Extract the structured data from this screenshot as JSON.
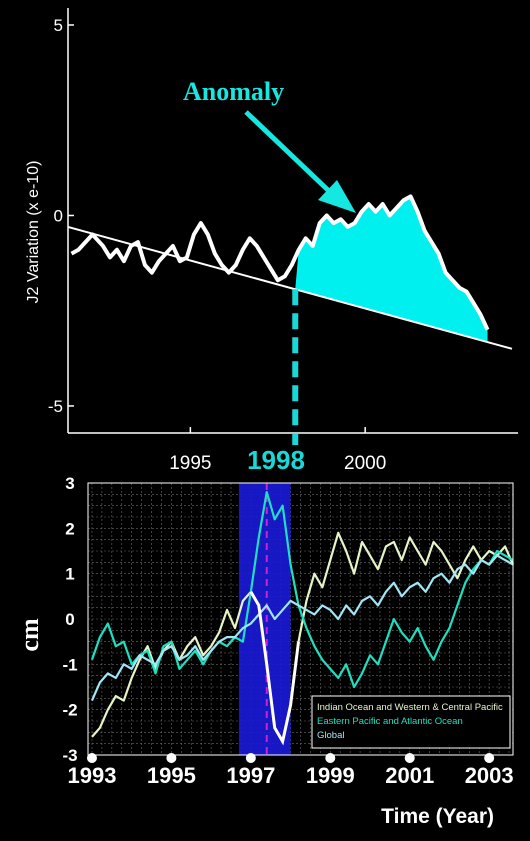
{
  "chart_data": [
    {
      "type": "line",
      "title": "",
      "ylabel": "J2 Variation (x e-10)",
      "xlabel": "",
      "xlim": [
        1991.5,
        2004.2
      ],
      "ylim": [
        -5.5,
        5
      ],
      "yticks": [
        5,
        0,
        -5
      ],
      "xticks": [
        1995,
        2000
      ],
      "highlight_year_label": "1998",
      "annotation": "Anomaly",
      "colors": {
        "series": "#ffffff",
        "anomaly_fill": "#00f0f0",
        "annotation": "#14e8e0",
        "marker": "#18d8d8"
      },
      "trend": {
        "x": [
          1991.5,
          2004.2
        ],
        "y": [
          -0.3,
          -3.5
        ]
      },
      "anomaly_start": 1998,
      "series": [
        {
          "x": [
            1991.6,
            1991.8,
            1992.0,
            1992.2,
            1992.5,
            1992.7,
            1992.9,
            1993.1,
            1993.3,
            1993.5,
            1993.7,
            1993.9,
            1994.1,
            1994.3,
            1994.5,
            1994.7,
            1994.9,
            1995.1,
            1995.3,
            1995.5,
            1995.7,
            1995.9,
            1996.1,
            1996.3,
            1996.5,
            1996.7,
            1996.9,
            1997.1,
            1997.3,
            1997.5,
            1997.7,
            1997.9,
            1998.1,
            1998.3,
            1998.5,
            1998.7,
            1998.9,
            1999.1,
            1999.3,
            1999.5,
            1999.7,
            1999.9,
            2000.1,
            2000.3,
            2000.5,
            2000.7,
            2000.9,
            2001.1,
            2001.3,
            2001.5,
            2001.7,
            2001.9,
            2002.1,
            2002.3,
            2002.5,
            2002.7,
            2002.9,
            2003.1,
            2003.3,
            2003.5
          ],
          "y": [
            -1.0,
            -0.9,
            -0.7,
            -0.5,
            -0.8,
            -1.1,
            -0.9,
            -1.2,
            -0.8,
            -0.7,
            -1.3,
            -1.5,
            -1.2,
            -1.0,
            -0.8,
            -1.2,
            -1.1,
            -0.5,
            -0.2,
            -0.5,
            -1.0,
            -1.3,
            -1.5,
            -1.3,
            -0.9,
            -0.6,
            -0.8,
            -1.1,
            -1.4,
            -1.7,
            -1.6,
            -1.3,
            -0.9,
            -0.6,
            -0.8,
            -0.2,
            0.0,
            -0.2,
            -0.1,
            -0.3,
            -0.2,
            0.1,
            0.3,
            0.1,
            0.3,
            0.0,
            0.2,
            0.4,
            0.5,
            0.1,
            -0.4,
            -0.7,
            -1.0,
            -1.5,
            -1.7,
            -1.9,
            -2.0,
            -2.3,
            -2.6,
            -3.0
          ]
        }
      ]
    },
    {
      "type": "line",
      "title": "",
      "xlabel": "Time (Year)",
      "ylabel": "cm",
      "xlim": [
        1992.9,
        2003.6
      ],
      "ylim": [
        -3,
        3
      ],
      "yticks": [
        3,
        2,
        1,
        0,
        -1,
        -2,
        -3
      ],
      "xticks": [
        1993,
        1995,
        1997,
        1999,
        2001,
        2003
      ],
      "highlight_band": [
        1996.7,
        1998.0
      ],
      "event_line": 1997.4,
      "colors": {
        "band": "#1a1ad8",
        "event": "#d020d0",
        "grid": "#6a6a6a",
        "dot": "#ffffff"
      },
      "legend": {
        "position": "bottom-right"
      },
      "series": [
        {
          "name": "Indian Ocean and Western & Central Pacific",
          "color": "#e6f5c8",
          "x": [
            1993.0,
            1993.2,
            1993.4,
            1993.6,
            1993.8,
            1994.0,
            1994.2,
            1994.4,
            1994.6,
            1994.8,
            1995.0,
            1995.2,
            1995.4,
            1995.6,
            1995.8,
            1996.0,
            1996.2,
            1996.4,
            1996.6,
            1996.8,
            1997.0,
            1997.2,
            1997.4,
            1997.6,
            1997.8,
            1998.0,
            1998.2,
            1998.4,
            1998.6,
            1998.8,
            1999.0,
            1999.2,
            1999.4,
            1999.6,
            1999.8,
            2000.0,
            2000.2,
            2000.4,
            2000.6,
            2000.8,
            2001.0,
            2001.2,
            2001.4,
            2001.6,
            2001.8,
            2002.0,
            2002.2,
            2002.4,
            2002.6,
            2002.8,
            2003.0,
            2003.2,
            2003.4,
            2003.6
          ],
          "y": [
            -2.6,
            -2.4,
            -2.0,
            -1.7,
            -1.8,
            -1.3,
            -0.9,
            -0.6,
            -1.1,
            -0.7,
            -0.5,
            -0.9,
            -0.6,
            -0.4,
            -0.8,
            -0.6,
            -0.3,
            0.2,
            -0.2,
            0.4,
            0.6,
            0.3,
            -1.0,
            -2.4,
            -2.7,
            -1.9,
            -0.5,
            0.4,
            1.0,
            0.7,
            1.3,
            1.9,
            1.5,
            1.0,
            1.7,
            1.4,
            1.1,
            1.6,
            1.7,
            1.3,
            1.8,
            1.5,
            1.2,
            1.7,
            1.5,
            1.2,
            0.9,
            1.3,
            1.6,
            1.3,
            1.5,
            1.4,
            1.6,
            1.2
          ]
        },
        {
          "name": "Eastern Pacific and Atlantic Ocean",
          "color": "#1ee0c0",
          "x": [
            1993.0,
            1993.2,
            1993.4,
            1993.6,
            1993.8,
            1994.0,
            1994.2,
            1994.4,
            1994.6,
            1994.8,
            1995.0,
            1995.2,
            1995.4,
            1995.6,
            1995.8,
            1996.0,
            1996.2,
            1996.4,
            1996.6,
            1996.8,
            1997.0,
            1997.2,
            1997.4,
            1997.6,
            1997.8,
            1998.0,
            1998.2,
            1998.4,
            1998.6,
            1998.8,
            1999.0,
            1999.2,
            1999.4,
            1999.6,
            1999.8,
            2000.0,
            2000.2,
            2000.4,
            2000.6,
            2000.8,
            2001.0,
            2001.2,
            2001.4,
            2001.6,
            2001.8,
            2002.0,
            2002.2,
            2002.4,
            2002.6,
            2002.8,
            2003.0,
            2003.2,
            2003.4,
            2003.6
          ],
          "y": [
            -0.9,
            -0.4,
            -0.1,
            -0.6,
            -0.5,
            -1.0,
            -0.8,
            -0.7,
            -1.2,
            -0.6,
            -0.5,
            -1.1,
            -0.9,
            -0.7,
            -1.0,
            -0.7,
            -0.5,
            -0.6,
            -0.4,
            -0.5,
            0.6,
            1.8,
            2.8,
            2.2,
            2.5,
            1.2,
            0.3,
            -0.2,
            -0.6,
            -0.9,
            -1.1,
            -1.3,
            -1.0,
            -1.5,
            -1.2,
            -0.8,
            -1.0,
            -0.5,
            0.0,
            -0.3,
            -0.5,
            -0.2,
            -0.6,
            -0.9,
            -0.5,
            -0.2,
            0.3,
            0.8,
            1.1,
            1.3,
            1.2,
            1.5,
            1.4,
            1.3
          ]
        },
        {
          "name": "Global",
          "color": "#a0e6f5",
          "x": [
            1993.0,
            1993.2,
            1993.4,
            1993.6,
            1993.8,
            1994.0,
            1994.2,
            1994.4,
            1994.6,
            1994.8,
            1995.0,
            1995.2,
            1995.4,
            1995.6,
            1995.8,
            1996.0,
            1996.2,
            1996.4,
            1996.6,
            1996.8,
            1997.0,
            1997.2,
            1997.4,
            1997.6,
            1997.8,
            1998.0,
            1998.2,
            1998.4,
            1998.6,
            1998.8,
            1999.0,
            1999.2,
            1999.4,
            1999.6,
            1999.8,
            2000.0,
            2000.2,
            2000.4,
            2000.6,
            2000.8,
            2001.0,
            2001.2,
            2001.4,
            2001.6,
            2001.8,
            2002.0,
            2002.2,
            2002.4,
            2002.6,
            2002.8,
            2003.0,
            2003.2,
            2003.4,
            2003.6
          ],
          "y": [
            -1.8,
            -1.4,
            -1.2,
            -1.3,
            -1.0,
            -1.1,
            -0.8,
            -0.9,
            -1.0,
            -0.7,
            -0.6,
            -0.9,
            -0.8,
            -0.6,
            -0.9,
            -0.7,
            -0.5,
            -0.4,
            -0.4,
            -0.2,
            -0.1,
            0.1,
            0.3,
            0.0,
            0.2,
            0.4,
            0.3,
            0.2,
            0.1,
            0.3,
            0.2,
            0.0,
            0.3,
            0.1,
            0.4,
            0.5,
            0.3,
            0.6,
            0.8,
            0.5,
            0.7,
            0.8,
            0.6,
            0.9,
            1.0,
            0.8,
            1.1,
            1.2,
            1.0,
            1.3,
            1.2,
            1.4,
            1.3,
            1.2
          ]
        }
      ]
    }
  ]
}
